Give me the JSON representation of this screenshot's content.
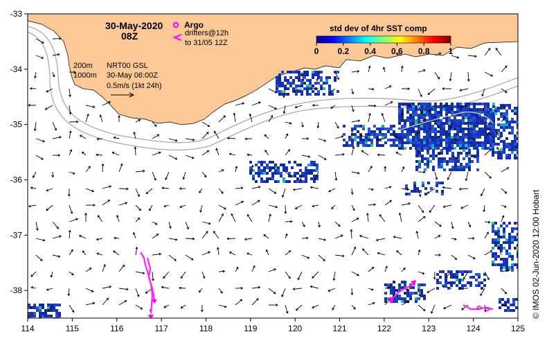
{
  "map": {
    "date_line": "30-May-2020",
    "time_line": "08Z",
    "argo_label": "Argo",
    "drifters_line1": "drifters@12h",
    "drifters_line2": "to 31/05 12Z",
    "contour_200": "200m",
    "contour_1000": "1000m",
    "product": "NRT00 GSL",
    "product_time": "30-May 06:00Z",
    "scale_text": "0.5m/s (1kt 24h)",
    "credit": "©  IMOS 02-Jun-2020 12:00 Hobart"
  },
  "colorbar": {
    "title": "std dev of 4hr SST comp",
    "ticks": [
      "0",
      "0.2",
      "0.4",
      "0.6",
      "0.8",
      "1"
    ]
  },
  "axes": {
    "x_ticks": [
      "114",
      "115",
      "116",
      "117",
      "118",
      "119",
      "120",
      "121",
      "122",
      "123",
      "124",
      "125"
    ],
    "y_ticks": [
      "-33",
      "-34",
      "-35",
      "-36",
      "-37",
      "-38"
    ],
    "lon_range": [
      114,
      125
    ],
    "lat_range": [
      -38.5,
      -33
    ]
  },
  "colors": {
    "land": "#fbc896",
    "sst_patch": "#1a3aa8",
    "argo": "#ff00ff",
    "drifter": "#ff22ff",
    "contour": "#aaaaaa"
  }
}
